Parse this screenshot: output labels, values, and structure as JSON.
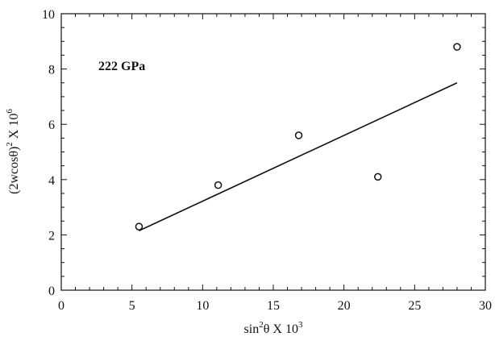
{
  "chart_data": {
    "type": "scatter",
    "annotation": "222 GPa",
    "xlabel": {
      "base": "sin",
      "sup1": "2",
      "mid": "θ X 10",
      "sup2": "3"
    },
    "ylabel": {
      "base": "(2wcosθ)",
      "sup1": "2",
      "mid": " X 10",
      "sup2": "6"
    },
    "xlim": [
      0,
      30
    ],
    "ylim": [
      0,
      10
    ],
    "x_ticks": [
      0,
      5,
      10,
      15,
      20,
      25,
      30
    ],
    "y_ticks": [
      0,
      2,
      4,
      6,
      8,
      10
    ],
    "grid": false,
    "points": [
      {
        "x": 5.5,
        "y": 2.3
      },
      {
        "x": 11.1,
        "y": 3.8
      },
      {
        "x": 16.8,
        "y": 5.6
      },
      {
        "x": 22.4,
        "y": 4.1
      },
      {
        "x": 28.0,
        "y": 8.8
      }
    ],
    "fit_line": {
      "x": [
        5.5,
        28.0
      ],
      "y": [
        2.15,
        7.5
      ]
    }
  }
}
